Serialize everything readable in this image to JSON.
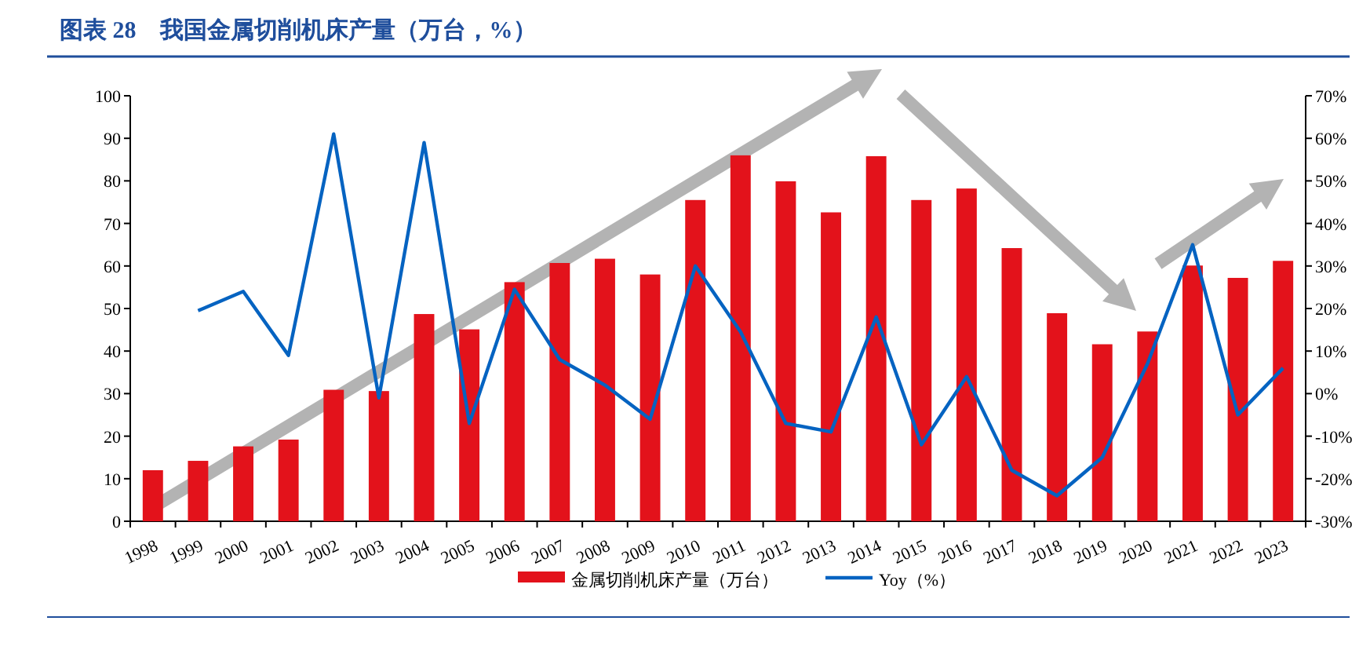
{
  "chart_data": {
    "type": "bar",
    "title": "图表 28　我国金属切削机床产量（万台，%）",
    "categories": [
      "1998",
      "1999",
      "2000",
      "2001",
      "2002",
      "2003",
      "2004",
      "2005",
      "2006",
      "2007",
      "2008",
      "2009",
      "2010",
      "2011",
      "2012",
      "2013",
      "2014",
      "2015",
      "2016",
      "2017",
      "2018",
      "2019",
      "2020",
      "2021",
      "2022",
      "2023"
    ],
    "series": [
      {
        "name": "金属切削机床产量（万台）",
        "color": "#e3121b",
        "values": [
          12,
          14.2,
          17.6,
          19.2,
          30.9,
          30.6,
          48.7,
          45.1,
          56.2,
          60.7,
          61.7,
          58,
          75.5,
          86,
          79.9,
          72.6,
          85.8,
          75.5,
          78.2,
          64.2,
          48.9,
          41.6,
          44.6,
          60.1,
          57.2,
          61.2
        ]
      },
      {
        "name": "Yoy（%）",
        "type": "line",
        "axis": "y2",
        "color": "#0563c1",
        "values": [
          null,
          19.5,
          24,
          9,
          61,
          -1,
          59,
          -7,
          24.5,
          8,
          2,
          -6,
          30,
          14.5,
          -7,
          -9,
          18,
          -12,
          4,
          -18,
          -24,
          -15,
          7,
          35,
          -5,
          6
        ]
      }
    ],
    "ylim": [
      0,
      100
    ],
    "yticks": [
      0,
      10,
      20,
      30,
      40,
      50,
      60,
      70,
      80,
      90,
      100
    ],
    "y2lim": [
      -30,
      70
    ],
    "y2ticks": [
      {
        "value": -30,
        "label": "-30%"
      },
      {
        "value": -20,
        "label": "-20%"
      },
      {
        "value": -10,
        "label": "-10%"
      },
      {
        "value": 0,
        "label": "0%"
      },
      {
        "value": 10,
        "label": "10%"
      },
      {
        "value": 20,
        "label": "20%"
      },
      {
        "value": 30,
        "label": "30%"
      },
      {
        "value": 40,
        "label": "40%"
      },
      {
        "value": 50,
        "label": "50%"
      },
      {
        "value": 60,
        "label": "60%"
      },
      {
        "value": 70,
        "label": "70%"
      }
    ],
    "legend": "bottom",
    "grid": false
  }
}
